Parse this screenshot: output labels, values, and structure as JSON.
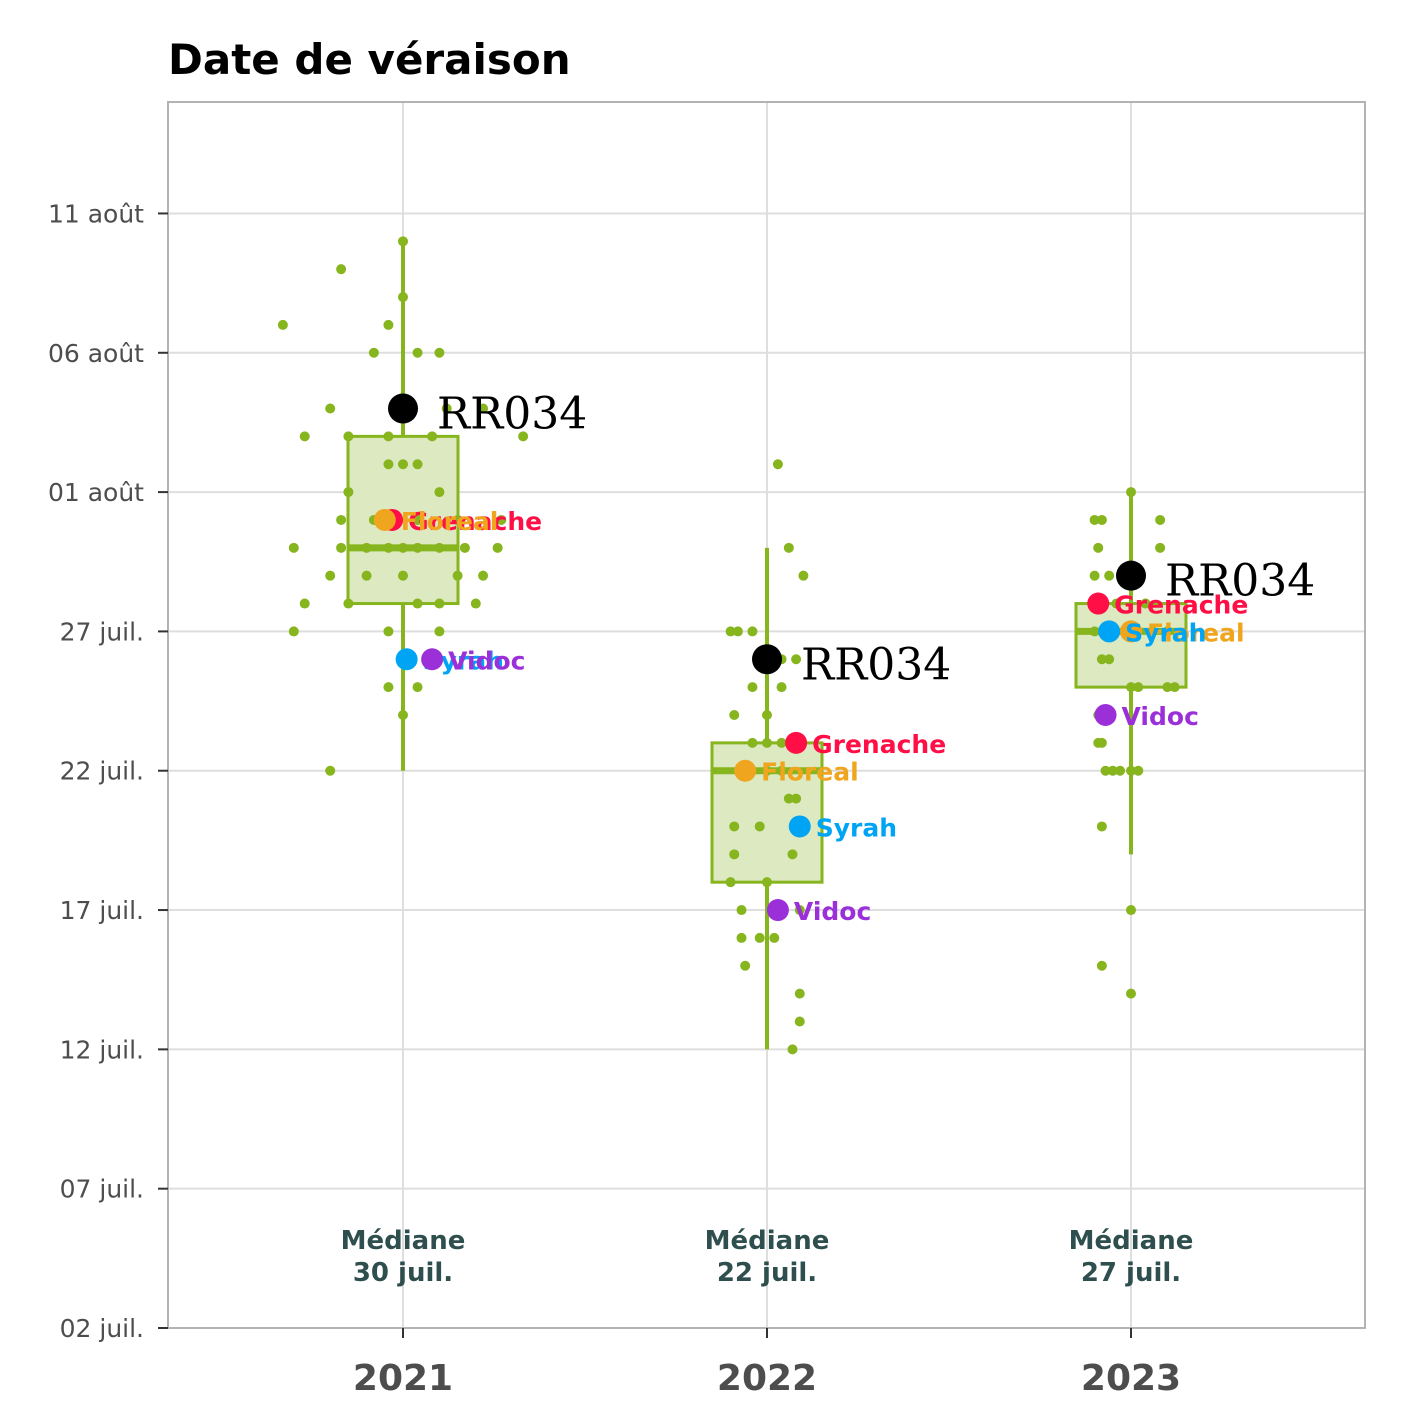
{
  "chart_data": {
    "type": "boxplot",
    "title": "Date de véraison",
    "xlabel": "",
    "ylabel": "",
    "categories": [
      "2021",
      "2022",
      "2023"
    ],
    "y_axis": {
      "ticks": [
        "11 août",
        "06 août",
        "01 août",
        "27 juil.",
        "22 juil.",
        "17 juil.",
        "12 juil.",
        "07 juil.",
        "02 juil."
      ],
      "tick_dates": [
        "2000-08-11",
        "2000-08-06",
        "2000-08-01",
        "2000-07-27",
        "2000-07-22",
        "2000-07-17",
        "2000-07-12",
        "2000-07-07",
        "2000-07-02"
      ],
      "range": [
        "2000-07-02",
        "2000-08-15"
      ],
      "grid": true
    },
    "boxes": [
      {
        "category": "2021",
        "q1": "2000-07-28",
        "median": "2000-07-30",
        "q3": "2000-08-03",
        "whisker_low": "2000-07-22",
        "whisker_high": "2000-08-10",
        "median_label": [
          "Médiane",
          "30 juil."
        ]
      },
      {
        "category": "2022",
        "q1": "2000-07-18",
        "median": "2000-07-22",
        "q3": "2000-07-23",
        "whisker_low": "2000-07-12",
        "whisker_high": "2000-07-30",
        "median_label": [
          "Médiane",
          "22 juil."
        ]
      },
      {
        "category": "2023",
        "q1": "2000-07-25",
        "median": "2000-07-27",
        "q3": "2000-07-28",
        "whisker_low": "2000-07-19",
        "whisker_high": "2000-08-01",
        "median_label": [
          "Médiane",
          "27 juil."
        ]
      }
    ],
    "points": [
      {
        "category": "2021",
        "dates": [
          "2000-08-10",
          "2000-08-09",
          "2000-08-08",
          "2000-08-07",
          "2000-08-07",
          "2000-08-06",
          "2000-08-06",
          "2000-08-06",
          "2000-08-04",
          "2000-08-04",
          "2000-08-04",
          "2000-08-03",
          "2000-08-03",
          "2000-08-03",
          "2000-08-03",
          "2000-08-03",
          "2000-08-02",
          "2000-08-02",
          "2000-08-02",
          "2000-08-01",
          "2000-08-01",
          "2000-07-31",
          "2000-07-31",
          "2000-07-31",
          "2000-07-31",
          "2000-07-31",
          "2000-07-30",
          "2000-07-30",
          "2000-07-30",
          "2000-07-30",
          "2000-07-30",
          "2000-07-30",
          "2000-07-30",
          "2000-07-30",
          "2000-07-30",
          "2000-07-29",
          "2000-07-29",
          "2000-07-29",
          "2000-07-29",
          "2000-07-29",
          "2000-07-28",
          "2000-07-28",
          "2000-07-28",
          "2000-07-28",
          "2000-07-28",
          "2000-07-27",
          "2000-07-27",
          "2000-07-27",
          "2000-07-25",
          "2000-07-25",
          "2000-07-24",
          "2000-07-22"
        ],
        "offsets": [
          0.0,
          -0.17,
          0.0,
          -0.33,
          -0.04,
          -0.08,
          0.04,
          0.1,
          -0.2,
          0.12,
          0.22,
          -0.27,
          -0.15,
          -0.04,
          0.08,
          0.33,
          -0.04,
          0.0,
          0.04,
          -0.15,
          0.1,
          -0.17,
          -0.08,
          0.04,
          0.15,
          0.27,
          -0.3,
          -0.17,
          -0.1,
          -0.04,
          0.0,
          0.04,
          0.1,
          0.17,
          0.26,
          -0.2,
          -0.1,
          0.0,
          0.15,
          0.22,
          -0.27,
          -0.15,
          0.04,
          0.1,
          0.2,
          -0.3,
          -0.04,
          0.1,
          -0.04,
          0.04,
          0.0,
          -0.2
        ]
      },
      {
        "category": "2022",
        "dates": [
          "2000-08-02",
          "2000-07-30",
          "2000-07-29",
          "2000-07-27",
          "2000-07-27",
          "2000-07-27",
          "2000-07-26",
          "2000-07-26",
          "2000-07-25",
          "2000-07-25",
          "2000-07-24",
          "2000-07-24",
          "2000-07-23",
          "2000-07-23",
          "2000-07-23",
          "2000-07-23",
          "2000-07-22",
          "2000-07-22",
          "2000-07-22",
          "2000-07-21",
          "2000-07-21",
          "2000-07-20",
          "2000-07-20",
          "2000-07-19",
          "2000-07-19",
          "2000-07-18",
          "2000-07-18",
          "2000-07-17",
          "2000-07-17",
          "2000-07-16",
          "2000-07-16",
          "2000-07-16",
          "2000-07-15",
          "2000-07-14",
          "2000-07-13",
          "2000-07-12"
        ],
        "offsets": [
          0.03,
          0.06,
          0.1,
          -0.1,
          -0.08,
          -0.04,
          0.04,
          0.08,
          -0.04,
          0.04,
          -0.09,
          0.0,
          -0.04,
          0.0,
          0.04,
          0.08,
          -0.06,
          0.0,
          0.04,
          0.06,
          0.08,
          -0.09,
          -0.02,
          -0.09,
          0.07,
          -0.1,
          0.0,
          -0.07,
          0.09,
          -0.07,
          -0.02,
          0.02,
          -0.06,
          0.09,
          0.09,
          0.07
        ]
      },
      {
        "category": "2023",
        "dates": [
          "2000-08-01",
          "2000-07-31",
          "2000-07-31",
          "2000-07-31",
          "2000-07-30",
          "2000-07-30",
          "2000-07-29",
          "2000-07-29",
          "2000-07-29",
          "2000-07-28",
          "2000-07-28",
          "2000-07-27",
          "2000-07-27",
          "2000-07-27",
          "2000-07-26",
          "2000-07-26",
          "2000-07-25",
          "2000-07-25",
          "2000-07-25",
          "2000-07-25",
          "2000-07-24",
          "2000-07-23",
          "2000-07-23",
          "2000-07-22",
          "2000-07-22",
          "2000-07-22",
          "2000-07-22",
          "2000-07-22",
          "2000-07-20",
          "2000-07-17",
          "2000-07-15",
          "2000-07-14"
        ],
        "offsets": [
          0.0,
          -0.1,
          -0.08,
          0.08,
          -0.09,
          0.08,
          -0.1,
          -0.06,
          0.02,
          -0.04,
          0.04,
          -0.1,
          0.06,
          0.1,
          -0.08,
          -0.06,
          0.0,
          0.1,
          0.12,
          0.02,
          -0.09,
          -0.09,
          -0.08,
          -0.07,
          -0.05,
          -0.03,
          0.0,
          0.02,
          -0.08,
          0.0,
          -0.08,
          0.0
        ]
      }
    ],
    "series": [
      {
        "name": "RR034",
        "color": "#000000",
        "dates": [
          "2000-08-04",
          "2000-07-26",
          "2000-07-29"
        ],
        "offsets": [
          0.0,
          0.0,
          0.0
        ]
      },
      {
        "name": "Grenache",
        "color": "#ff0f45",
        "dates": [
          "2000-07-31",
          "2000-07-23",
          "2000-07-28"
        ],
        "offsets": [
          -0.03,
          0.08,
          -0.09
        ]
      },
      {
        "name": "Floreal",
        "color": "#f0a51e",
        "dates": [
          "2000-07-31",
          "2000-07-22",
          "2000-07-27"
        ],
        "offsets": [
          -0.05,
          -0.06,
          0.0
        ]
      },
      {
        "name": "Syrah",
        "color": "#00a4f5",
        "dates": [
          "2000-07-26",
          "2000-07-20",
          "2000-07-27"
        ],
        "offsets": [
          0.01,
          0.09,
          -0.06
        ]
      },
      {
        "name": "Vidoc",
        "color": "#9b30d9",
        "dates": [
          "2000-07-26",
          "2000-07-17",
          "2000-07-24"
        ],
        "offsets": [
          0.08,
          0.03,
          -0.07
        ]
      }
    ],
    "colors": {
      "box_fill": "#dde9c1",
      "box_stroke": "#86b51e",
      "grid": "#dedede",
      "panel_border": "#b3b3b3"
    }
  }
}
